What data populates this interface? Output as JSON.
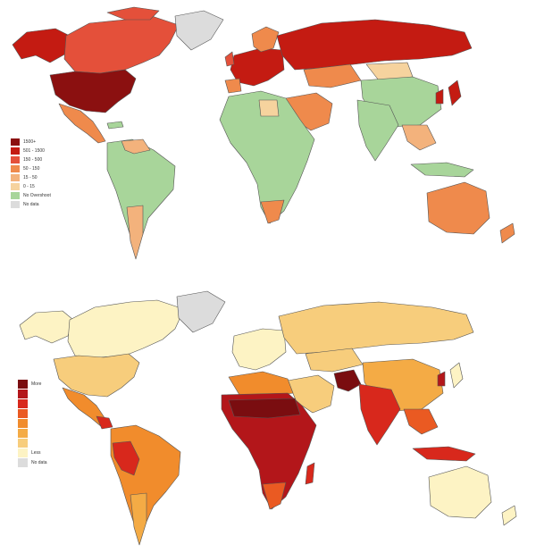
{
  "maps": [
    {
      "legend": [
        {
          "label": "1500+",
          "color": "#8b1010"
        },
        {
          "label": "501 - 1500",
          "color": "#c41b12"
        },
        {
          "label": "150 - 500",
          "color": "#e4503a"
        },
        {
          "label": "50 - 150",
          "color": "#ef8a4c"
        },
        {
          "label": "15 - 50",
          "color": "#f3b27c"
        },
        {
          "label": "0 - 15",
          "color": "#f6d39e"
        },
        {
          "label": "No Overshoot",
          "color": "#a8d59a"
        },
        {
          "label": "No data",
          "color": "#dcdcdc"
        }
      ]
    },
    {
      "legend": [
        {
          "label": "More",
          "color": "#7a0d10"
        },
        {
          "label": "",
          "color": "#b3161a"
        },
        {
          "label": "",
          "color": "#d8281c"
        },
        {
          "label": "",
          "color": "#ea5a22"
        },
        {
          "label": "",
          "color": "#f18c2c"
        },
        {
          "label": "",
          "color": "#f4ab45"
        },
        {
          "label": "",
          "color": "#f7cd7c"
        },
        {
          "label": "Less",
          "color": "#fdf3c4"
        },
        {
          "label": "No data",
          "color": "#dcdcdc"
        }
      ]
    }
  ]
}
